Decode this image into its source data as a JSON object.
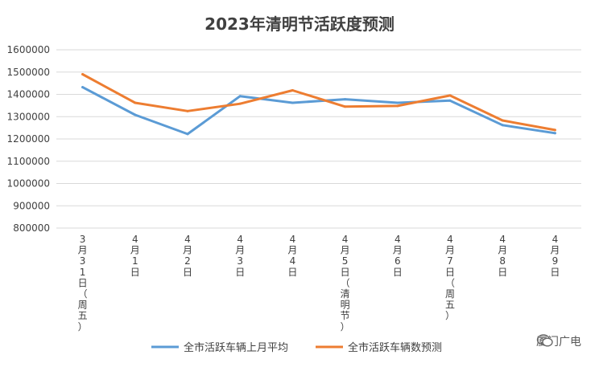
{
  "chart_data": {
    "type": "line",
    "title": "2023年清明节活跃度预测",
    "categories": [
      "3月31日（周五）",
      "4月1日",
      "4月2日",
      "4月3日",
      "4月4日",
      "4月5日（清明节）",
      "4月6日",
      "4月7日（周五）",
      "4月8日",
      "4月9日"
    ],
    "series": [
      {
        "name": "全市活跃车辆上月平均",
        "color": "#5b9bd5",
        "values": [
          1432000,
          1308000,
          1222000,
          1392000,
          1362000,
          1378000,
          1362000,
          1372000,
          1262000,
          1226000
        ]
      },
      {
        "name": "全市活跃车辆数预测",
        "color": "#ed7d31",
        "values": [
          1490000,
          1362000,
          1325000,
          1358000,
          1418000,
          1345000,
          1348000,
          1395000,
          1283000,
          1240000
        ]
      }
    ],
    "ylim": [
      800000,
      1600000
    ],
    "yticks": [
      800000,
      900000,
      1000000,
      1100000,
      1200000,
      1300000,
      1400000,
      1500000,
      1600000
    ],
    "grid": true,
    "legend": "bottom"
  },
  "watermark": {
    "icon": "wechat-icon",
    "text": "厦门广电"
  }
}
